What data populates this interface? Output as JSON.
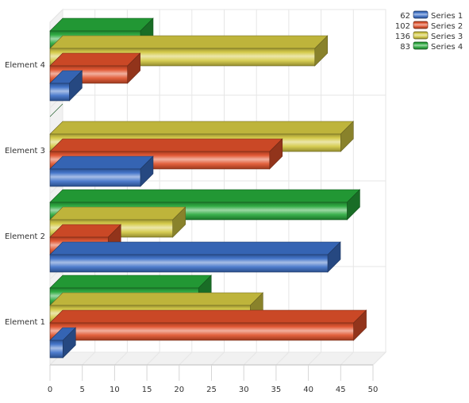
{
  "chart_data": {
    "type": "bar",
    "orientation": "horizontal",
    "style": "3d",
    "categories": [
      "Element 1",
      "Element 2",
      "Element 3",
      "Element 4"
    ],
    "series": [
      {
        "name": "Series 1",
        "total": "62",
        "color": "#3b6fc7",
        "values": [
          2,
          43,
          14,
          3
        ]
      },
      {
        "name": "Series 2",
        "total": "102",
        "color": "#e0502a",
        "values": [
          47,
          9,
          34,
          12
        ]
      },
      {
        "name": "Series 3",
        "total": "136",
        "color": "#d3c842",
        "values": [
          31,
          19,
          45,
          41
        ]
      },
      {
        "name": "Series 4",
        "total": "83",
        "color": "#26a83a",
        "values": [
          23,
          46,
          0,
          14
        ]
      }
    ],
    "x_ticks": [
      "0",
      "5",
      "10",
      "15",
      "20",
      "25",
      "30",
      "35",
      "40",
      "45",
      "50"
    ],
    "xlim": [
      0,
      50
    ],
    "grid": true,
    "legend_position": "top-right"
  }
}
